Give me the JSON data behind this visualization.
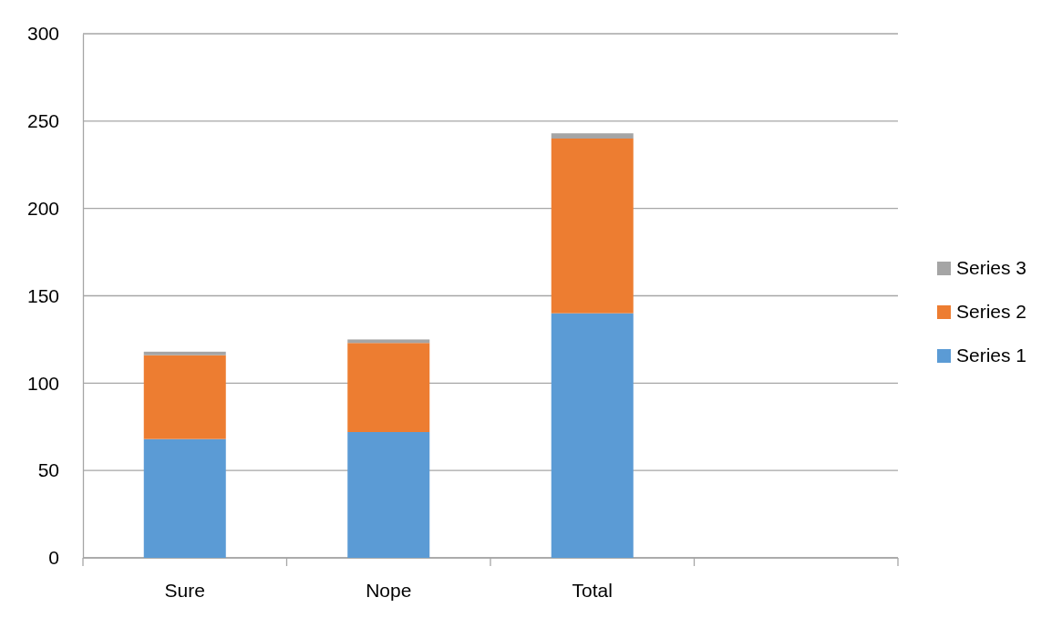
{
  "chart_data": {
    "type": "bar",
    "stacked": true,
    "categories": [
      "Sure",
      "Nope",
      "Total",
      null
    ],
    "series": [
      {
        "name": "Series 1",
        "color": "#5b9bd5",
        "values": [
          68,
          72,
          140,
          null
        ]
      },
      {
        "name": "Series 2",
        "color": "#ed7d31",
        "values": [
          48,
          51,
          100,
          null
        ]
      },
      {
        "name": "Series 3",
        "color": "#a5a5a5",
        "values": [
          2,
          2,
          3,
          null
        ]
      }
    ],
    "ylim": [
      0,
      300
    ],
    "yticks": [
      0,
      50,
      100,
      150,
      200,
      250,
      300
    ],
    "grid": "y",
    "legend": "right"
  }
}
